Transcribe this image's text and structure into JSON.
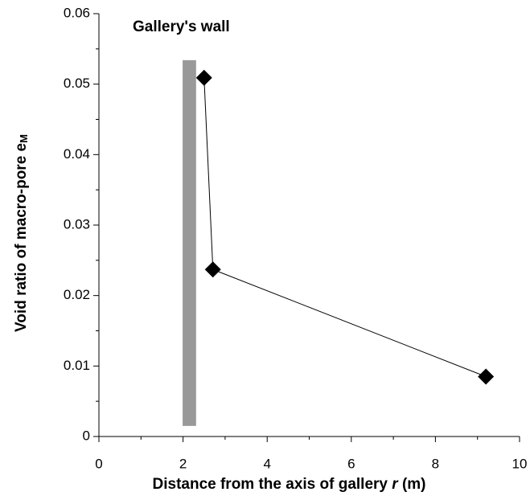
{
  "chart_data": {
    "type": "line",
    "xlabel": [
      "Distance from the axis of gallery ",
      "r",
      " (m)"
    ],
    "ylabel": "Void ratio of macro-pore e",
    "ylabel_subscript": "M",
    "x": [
      2.5,
      2.71,
      9.2
    ],
    "series": [
      {
        "color": "#000000",
        "values": [
          0.0509,
          0.0237,
          0.0085
        ]
      }
    ],
    "xlim": [
      0,
      10
    ],
    "xticks": [
      0,
      2,
      4,
      6,
      8,
      10
    ],
    "xminor_ticks": [
      1,
      3,
      5,
      7,
      9
    ],
    "ylim": [
      0,
      0.06
    ],
    "yticks": [
      0,
      0.01,
      0.02,
      0.03,
      0.04,
      0.05,
      0.06
    ],
    "yminor_ticks": [
      0.005,
      0.015,
      0.025,
      0.035,
      0.045,
      0.055
    ],
    "wall": {
      "label": "Gallery's wall",
      "x": [
        1.99,
        2.31
      ],
      "y": [
        0.0015,
        0.0534
      ],
      "color": "#999999"
    },
    "grid": false
  }
}
